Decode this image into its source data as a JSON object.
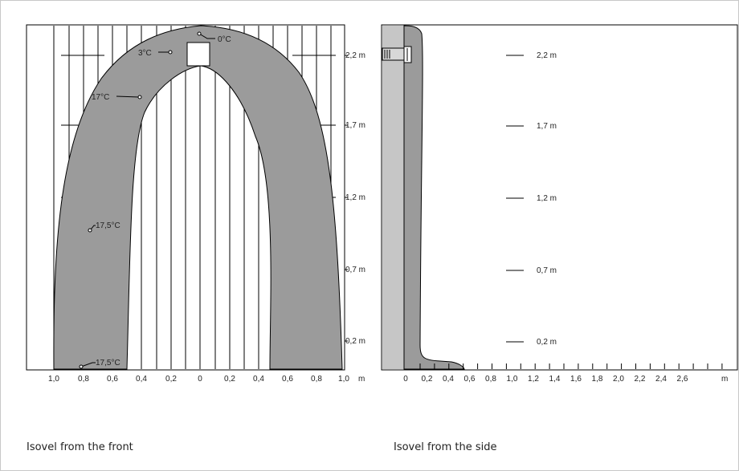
{
  "front": {
    "caption": "Isovel from the front",
    "x_ticks": [
      "1,0",
      "0,8",
      "0,6",
      "0,4",
      "0,2",
      "0",
      "0,2",
      "0,4",
      "0,6",
      "0,8",
      "1,0"
    ],
    "x_unit": "m",
    "height_labels": [
      "2,2 m",
      "1,7 m",
      "1,2 m",
      "0,7 m",
      "0,2 m"
    ],
    "temperatures": [
      "0°C",
      "3°C",
      "17°C",
      "17,5°C",
      "17,5°C"
    ]
  },
  "side": {
    "caption": "Isovel from the side",
    "x_ticks": [
      "0",
      "0,2",
      "0,4",
      "0,6",
      "0,8",
      "1,0",
      "1,2",
      "1,4",
      "1,6",
      "1,8",
      "2,0",
      "2,2",
      "2,4",
      "2,6"
    ],
    "x_unit": "m",
    "height_labels": [
      "2,2 m",
      "1,7 m",
      "1,2 m",
      "0,7 m",
      "0,2 m"
    ]
  },
  "colors": {
    "isovel_fill": "#9b9b9b",
    "wall_fill": "#c6c6c6",
    "stroke": "#000000"
  }
}
